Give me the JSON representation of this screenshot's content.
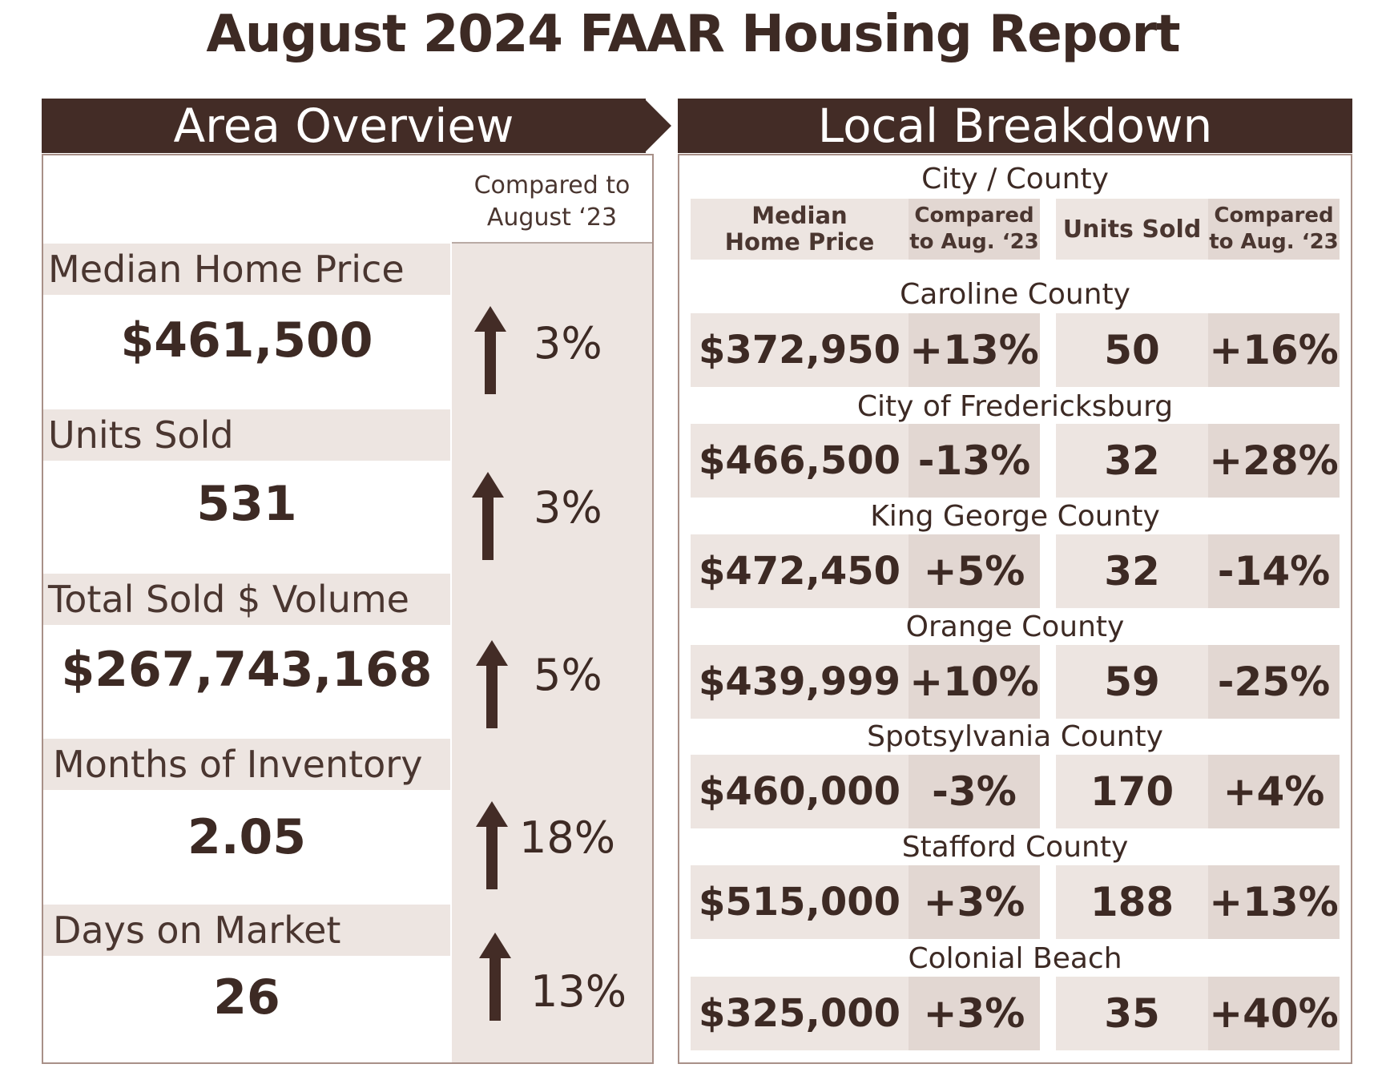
{
  "title": "August 2024 FAAR Housing Report",
  "area_overview": {
    "heading": "Area Overview",
    "compare_header_line1": "Compared to",
    "compare_header_line2": "August ‘23",
    "metrics": [
      {
        "label": "Median Home Price",
        "value": "$461,500",
        "change": "3%",
        "direction": "up"
      },
      {
        "label": "Units Sold",
        "value": "531",
        "change": "3%",
        "direction": "up"
      },
      {
        "label": "Total Sold $ Volume",
        "value": "$267,743,168",
        "change": "5%",
        "direction": "up"
      },
      {
        "label": "Months of Inventory",
        "value": "2.05",
        "change": "18%",
        "direction": "up"
      },
      {
        "label": "Days on Market",
        "value": "26",
        "change": "13%",
        "direction": "up"
      }
    ]
  },
  "local_breakdown": {
    "heading": "Local Breakdown",
    "subheading": "City / County",
    "columns": {
      "median_line1": "Median",
      "median_line2": "Home Price",
      "compared_line1": "Compared",
      "compared_line2": "to Aug. ‘23",
      "units": "Units Sold",
      "compared2_line1": "Compared",
      "compared2_line2": "to Aug. ‘23"
    },
    "rows": [
      {
        "name": "Caroline County",
        "price": "$372,950",
        "price_change": "+13%",
        "units": "50",
        "units_change": "+16%"
      },
      {
        "name": "City of Fredericksburg",
        "price": "$466,500",
        "price_change": "-13%",
        "units": "32",
        "units_change": "+28%"
      },
      {
        "name": "King George County",
        "price": "$472,450",
        "price_change": "+5%",
        "units": "32",
        "units_change": "-14%"
      },
      {
        "name": "Orange County",
        "price": "$439,999",
        "price_change": "+10%",
        "units": "59",
        "units_change": "-25%"
      },
      {
        "name": "Spotsylvania County",
        "price": "$460,000",
        "price_change": "-3%",
        "units": "170",
        "units_change": "+4%"
      },
      {
        "name": "Stafford County",
        "price": "$515,000",
        "price_change": "+3%",
        "units": "188",
        "units_change": "+13%"
      },
      {
        "name": "Colonial Beach",
        "price": "$325,000",
        "price_change": "+3%",
        "units": "35",
        "units_change": "+40%"
      }
    ]
  },
  "colors": {
    "brand_dark": "#432c26",
    "panel_fill": "#ede5e1",
    "panel_fill_dark": "#e2d7d2",
    "text": "#3d2a24"
  },
  "icons": {
    "trend": "up-arrow-icon"
  }
}
